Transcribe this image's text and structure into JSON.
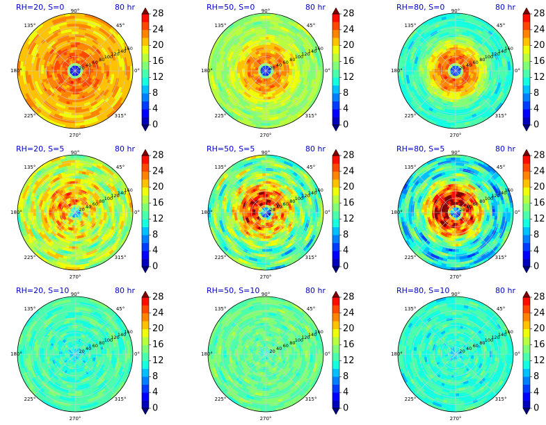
{
  "chart_data": {
    "type": "heatmap",
    "projection": "polar",
    "grid": true,
    "valid_time_label": "80 hr",
    "angle_tick_labels": [
      "0°",
      "45°",
      "90°",
      "135°",
      "180°",
      "225°",
      "270°",
      "315°"
    ],
    "radial_tick_labels": [
      "20",
      "40",
      "60",
      "80",
      "100",
      "120",
      "140",
      "160"
    ],
    "radial_range": [
      0,
      160
    ],
    "colorbar": {
      "tick_labels": [
        "0",
        "4",
        "8",
        "12",
        "16",
        "20",
        "24",
        "28"
      ],
      "range": [
        0,
        28
      ],
      "level_step": 2,
      "extend": "both",
      "colormap": "jet",
      "colors": [
        "#00007f",
        "#0000bd",
        "#0000fe",
        "#003cff",
        "#0080ff",
        "#00c0ff",
        "#15ffe1",
        "#4bffac",
        "#80ff77",
        "#b8ff3f",
        "#eeff09",
        "#ffc200",
        "#ff8400",
        "#ff4700",
        "#fe0c00",
        "#be0000",
        "#800000"
      ]
    },
    "panels": [
      {
        "title": "RH=20, S=0",
        "inner": 1.5,
        "ring": 24,
        "outer": 21,
        "offset": 0
      },
      {
        "title": "RH=50, S=0",
        "inner": 3,
        "ring": 23,
        "outer": 16,
        "offset": 0
      },
      {
        "title": "RH=80, S=0",
        "inner": 4,
        "ring": 24,
        "outer": 12,
        "offset": 0
      },
      {
        "title": "RH=20, S=5",
        "inner": 10,
        "ring": 21,
        "outer": 17,
        "offset": 6
      },
      {
        "title": "RH=50, S=5",
        "inner": 6,
        "ring": 24,
        "outer": 14,
        "offset": 8
      },
      {
        "title": "RH=80, S=5",
        "inner": 6,
        "ring": 27,
        "outer": 11,
        "offset": 8
      },
      {
        "title": "RH=20, S=10",
        "inner": 10,
        "ring": 12,
        "outer": 13,
        "offset": 0
      },
      {
        "title": "RH=50, S=10",
        "inner": 12,
        "ring": 14,
        "outer": 14,
        "offset": 0
      },
      {
        "title": "RH=80, S=10",
        "inner": 10,
        "ring": 12,
        "outer": 12,
        "offset": 0
      }
    ]
  }
}
